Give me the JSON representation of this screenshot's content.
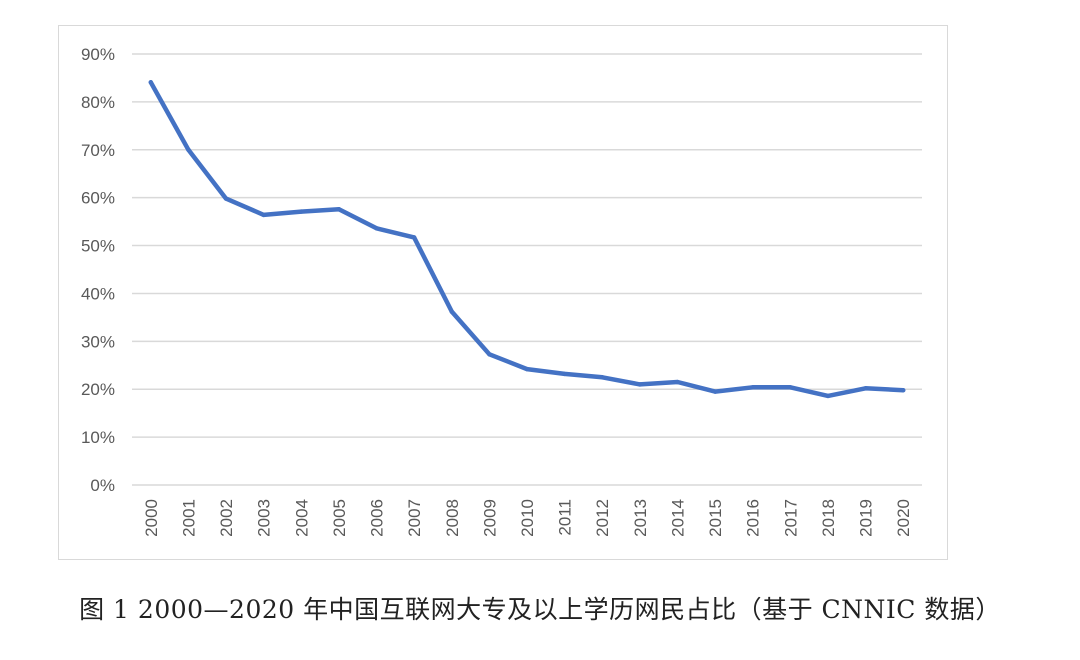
{
  "caption": "图 1 2000—2020 年中国互联网大专及以上学历网民占比（基于 CNNIC 数据）",
  "chart_data": {
    "type": "line",
    "title": "",
    "xlabel": "",
    "ylabel": "",
    "categories": [
      "2000",
      "2001",
      "2002",
      "2003",
      "2004",
      "2005",
      "2006",
      "2007",
      "2008",
      "2009",
      "2010",
      "2011",
      "2012",
      "2013",
      "2014",
      "2015",
      "2016",
      "2017",
      "2018",
      "2019",
      "2020"
    ],
    "series": [
      {
        "values": [
          84.1,
          70.0,
          59.8,
          56.4,
          57.1,
          57.6,
          53.6,
          51.7,
          36.2,
          27.3,
          24.2,
          23.2,
          22.5,
          21.0,
          21.5,
          19.5,
          20.4,
          20.4,
          18.6,
          20.2,
          19.8
        ]
      }
    ],
    "ylim": [
      0,
      90
    ],
    "yticks": [
      "0%",
      "10%",
      "20%",
      "30%",
      "40%",
      "50%",
      "60%",
      "70%",
      "80%",
      "90%"
    ],
    "line_color": "#4472c4",
    "grid_color": "#d9d9d9",
    "grid": true,
    "legend": false
  }
}
